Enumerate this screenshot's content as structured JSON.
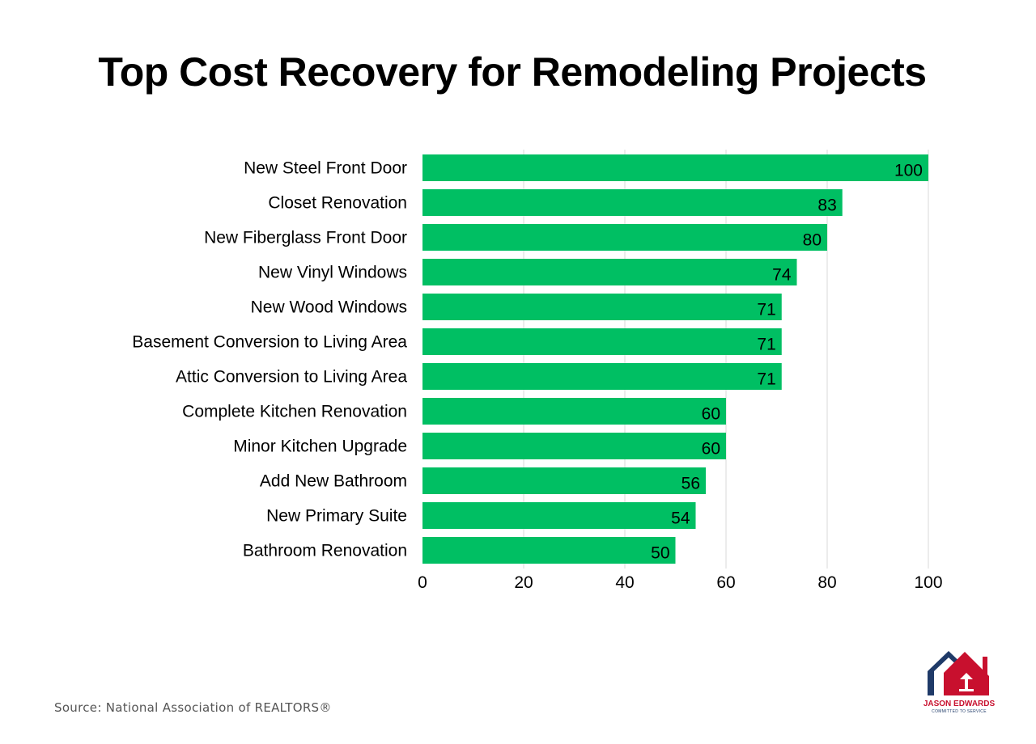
{
  "chart_data": {
    "type": "bar",
    "orientation": "horizontal",
    "title": "Top Cost Recovery for Remodeling Projects",
    "xlabel": "",
    "ylabel": "",
    "xlim": [
      0,
      100
    ],
    "xticks": [
      0,
      20,
      40,
      60,
      80,
      100
    ],
    "grid": true,
    "categories": [
      "New Steel Front Door",
      "Closet Renovation",
      "New Fiberglass Front Door",
      "New Vinyl Windows",
      "New Wood Windows",
      "Basement Conversion to Living Area",
      "Attic Conversion to Living Area",
      "Complete Kitchen Renovation",
      "Minor Kitchen Upgrade",
      "Add New Bathroom",
      "New Primary Suite",
      "Bathroom Renovation"
    ],
    "values": [
      100,
      83,
      80,
      74,
      71,
      71,
      71,
      60,
      60,
      56,
      54,
      50
    ],
    "bar_color": "#00bf63"
  },
  "source": "Source: National Association of REALTORS®",
  "logo": {
    "name": "JASON EDWARDS",
    "tagline": "COMMITTED TO SERVICE",
    "primary_color": "#c8102e",
    "secondary_color": "#1f3a68"
  }
}
